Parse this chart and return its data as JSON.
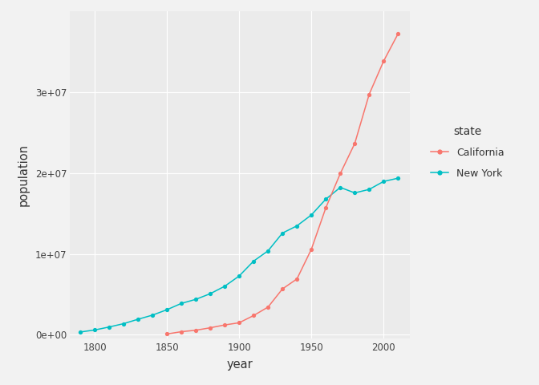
{
  "california_years": [
    1850,
    1860,
    1870,
    1880,
    1890,
    1900,
    1910,
    1920,
    1930,
    1940,
    1950,
    1960,
    1970,
    1980,
    1990,
    2000,
    2010
  ],
  "california_pop": [
    92597,
    379994,
    560247,
    864694,
    1213398,
    1485053,
    2377549,
    3426861,
    5677251,
    6907387,
    10586223,
    15717204,
    19953134,
    23667902,
    29760021,
    33871648,
    37253956
  ],
  "newyork_years": [
    1790,
    1800,
    1810,
    1820,
    1830,
    1840,
    1850,
    1860,
    1870,
    1880,
    1890,
    1900,
    1910,
    1920,
    1930,
    1940,
    1950,
    1960,
    1970,
    1980,
    1990,
    2000,
    2010
  ],
  "newyork_pop": [
    340120,
    589051,
    959049,
    1372812,
    1918608,
    2428921,
    3097394,
    3880735,
    4382759,
    5082871,
    6003174,
    7268894,
    9113614,
    10385227,
    12588066,
    13479142,
    14830192,
    16782304,
    18236967,
    17558072,
    17990455,
    18976457,
    19378102
  ],
  "california_color": "#F8766D",
  "newyork_color": "#00BFC4",
  "plot_bg_color": "#EBEBEB",
  "fig_bg_color": "#F2F2F2",
  "legend_bg_color": "#F2F2F2",
  "grid_color": "#FFFFFF",
  "legend_title": "state",
  "legend_california": "California",
  "legend_newyork": "New York",
  "xlabel": "year",
  "ylabel": "population",
  "xlim": [
    1783,
    2018
  ],
  "ylim": [
    -500000,
    40000000
  ],
  "yticks": [
    0,
    10000000,
    20000000,
    30000000
  ],
  "ytick_labels": [
    "0e+00",
    "1e+07",
    "2e+07",
    "3e+07"
  ],
  "xticks": [
    1800,
    1850,
    1900,
    1950,
    2000
  ]
}
